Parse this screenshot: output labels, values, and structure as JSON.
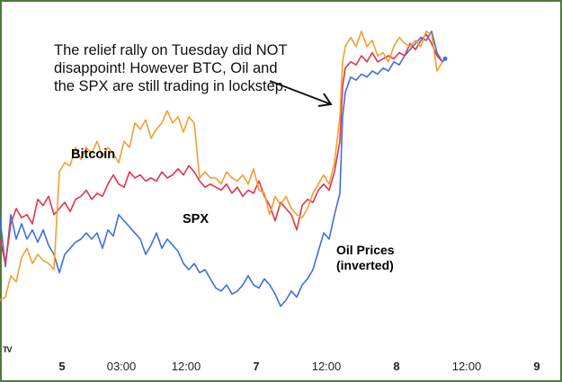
{
  "annotation": "The relief rally on Tuesday did NOT disappoint! However BTC, Oil and the SPX are still trading in lockstep.",
  "logo_text": "TV",
  "colors": {
    "bitcoin": "#f0a030",
    "spx": "#e0344c",
    "oil": "#3f6fdd",
    "frame": "#4e7a3a"
  },
  "chart_data": {
    "type": "line",
    "title": "",
    "xlabel": "",
    "ylabel": "",
    "x_ticks": [
      {
        "label": "5",
        "x": 0.1,
        "bold": true
      },
      {
        "label": "03:00",
        "x": 0.21,
        "bold": false
      },
      {
        "label": "12:00",
        "x": 0.33,
        "bold": false
      },
      {
        "label": "7",
        "x": 0.46,
        "bold": true
      },
      {
        "label": "12:00",
        "x": 0.59,
        "bold": false
      },
      {
        "label": "8",
        "x": 0.72,
        "bold": true
      },
      {
        "label": "12:00",
        "x": 0.85,
        "bold": false
      },
      {
        "label": "9",
        "x": 0.98,
        "bold": true
      }
    ],
    "x_range": [
      0,
      1
    ],
    "y_range": [
      0,
      1
    ],
    "series": [
      {
        "name": "Bitcoin",
        "label_lines": [
          "Bitcoin"
        ],
        "color": "#f0a030",
        "points": [
          [
            0,
            0.1
          ],
          [
            0.01,
            0.11
          ],
          [
            0.02,
            0.18
          ],
          [
            0.03,
            0.16
          ],
          [
            0.04,
            0.24
          ],
          [
            0.05,
            0.27
          ],
          [
            0.06,
            0.22
          ],
          [
            0.07,
            0.25
          ],
          [
            0.08,
            0.23
          ],
          [
            0.09,
            0.22
          ],
          [
            0.1,
            0.2
          ],
          [
            0.11,
            0.52
          ],
          [
            0.12,
            0.55
          ],
          [
            0.13,
            0.54
          ],
          [
            0.14,
            0.6
          ],
          [
            0.15,
            0.56
          ],
          [
            0.16,
            0.6
          ],
          [
            0.17,
            0.58
          ],
          [
            0.18,
            0.62
          ],
          [
            0.19,
            0.57
          ],
          [
            0.2,
            0.6
          ],
          [
            0.21,
            0.58
          ],
          [
            0.22,
            0.55
          ],
          [
            0.23,
            0.62
          ],
          [
            0.24,
            0.6
          ],
          [
            0.25,
            0.68
          ],
          [
            0.26,
            0.66
          ],
          [
            0.27,
            0.69
          ],
          [
            0.28,
            0.63
          ],
          [
            0.29,
            0.66
          ],
          [
            0.3,
            0.68
          ],
          [
            0.31,
            0.72
          ],
          [
            0.32,
            0.68
          ],
          [
            0.33,
            0.7
          ],
          [
            0.34,
            0.65
          ],
          [
            0.35,
            0.7
          ],
          [
            0.36,
            0.68
          ],
          [
            0.37,
            0.5
          ],
          [
            0.38,
            0.52
          ],
          [
            0.39,
            0.5
          ],
          [
            0.4,
            0.5
          ],
          [
            0.41,
            0.48
          ],
          [
            0.42,
            0.52
          ],
          [
            0.43,
            0.5
          ],
          [
            0.44,
            0.49
          ],
          [
            0.45,
            0.51
          ],
          [
            0.46,
            0.48
          ],
          [
            0.47,
            0.53
          ],
          [
            0.48,
            0.46
          ],
          [
            0.49,
            0.45
          ],
          [
            0.5,
            0.38
          ],
          [
            0.51,
            0.44
          ],
          [
            0.52,
            0.41
          ],
          [
            0.53,
            0.44
          ],
          [
            0.54,
            0.4
          ],
          [
            0.55,
            0.38
          ],
          [
            0.56,
            0.37
          ],
          [
            0.57,
            0.4
          ],
          [
            0.58,
            0.45
          ],
          [
            0.59,
            0.48
          ],
          [
            0.6,
            0.51
          ],
          [
            0.61,
            0.48
          ],
          [
            0.62,
            0.55
          ],
          [
            0.63,
            0.7
          ],
          [
            0.635,
            0.88
          ],
          [
            0.64,
            0.93
          ],
          [
            0.65,
            0.96
          ],
          [
            0.66,
            0.93
          ],
          [
            0.67,
            0.98
          ],
          [
            0.68,
            0.93
          ],
          [
            0.69,
            0.95
          ],
          [
            0.7,
            0.9
          ],
          [
            0.71,
            0.91
          ],
          [
            0.72,
            0.88
          ],
          [
            0.73,
            0.93
          ],
          [
            0.74,
            0.96
          ],
          [
            0.75,
            0.94
          ],
          [
            0.76,
            0.93
          ],
          [
            0.77,
            0.95
          ],
          [
            0.78,
            0.93
          ],
          [
            0.79,
            0.98
          ],
          [
            0.8,
            0.97
          ],
          [
            0.81,
            0.85
          ],
          [
            0.82,
            0.88
          ]
        ]
      },
      {
        "name": "SPX",
        "label_lines": [
          "SPX"
        ],
        "color": "#e0344c",
        "points": [
          [
            0,
            0.3
          ],
          [
            0.01,
            0.22
          ],
          [
            0.02,
            0.35
          ],
          [
            0.03,
            0.4
          ],
          [
            0.04,
            0.37
          ],
          [
            0.05,
            0.38
          ],
          [
            0.06,
            0.35
          ],
          [
            0.07,
            0.43
          ],
          [
            0.08,
            0.41
          ],
          [
            0.09,
            0.44
          ],
          [
            0.1,
            0.38
          ],
          [
            0.11,
            0.4
          ],
          [
            0.12,
            0.42
          ],
          [
            0.13,
            0.39
          ],
          [
            0.14,
            0.43
          ],
          [
            0.15,
            0.44
          ],
          [
            0.16,
            0.46
          ],
          [
            0.17,
            0.43
          ],
          [
            0.18,
            0.45
          ],
          [
            0.19,
            0.44
          ],
          [
            0.2,
            0.48
          ],
          [
            0.21,
            0.51
          ],
          [
            0.22,
            0.48
          ],
          [
            0.23,
            0.47
          ],
          [
            0.24,
            0.52
          ],
          [
            0.25,
            0.5
          ],
          [
            0.26,
            0.51
          ],
          [
            0.27,
            0.49
          ],
          [
            0.28,
            0.5
          ],
          [
            0.29,
            0.49
          ],
          [
            0.3,
            0.52
          ],
          [
            0.31,
            0.5
          ],
          [
            0.32,
            0.51
          ],
          [
            0.33,
            0.53
          ],
          [
            0.34,
            0.51
          ],
          [
            0.35,
            0.54
          ],
          [
            0.36,
            0.52
          ],
          [
            0.37,
            0.49
          ],
          [
            0.38,
            0.47
          ],
          [
            0.39,
            0.48
          ],
          [
            0.4,
            0.47
          ],
          [
            0.41,
            0.46
          ],
          [
            0.42,
            0.48
          ],
          [
            0.43,
            0.45
          ],
          [
            0.44,
            0.47
          ],
          [
            0.45,
            0.44
          ],
          [
            0.46,
            0.46
          ],
          [
            0.47,
            0.45
          ],
          [
            0.48,
            0.49
          ],
          [
            0.49,
            0.44
          ],
          [
            0.5,
            0.41
          ],
          [
            0.51,
            0.36
          ],
          [
            0.52,
            0.42
          ],
          [
            0.53,
            0.4
          ],
          [
            0.54,
            0.38
          ],
          [
            0.55,
            0.33
          ],
          [
            0.56,
            0.41
          ],
          [
            0.57,
            0.43
          ],
          [
            0.58,
            0.42
          ],
          [
            0.59,
            0.46
          ],
          [
            0.6,
            0.48
          ],
          [
            0.61,
            0.46
          ],
          [
            0.62,
            0.52
          ],
          [
            0.63,
            0.62
          ],
          [
            0.635,
            0.8
          ],
          [
            0.64,
            0.86
          ],
          [
            0.65,
            0.88
          ],
          [
            0.66,
            0.87
          ],
          [
            0.67,
            0.9
          ],
          [
            0.68,
            0.88
          ],
          [
            0.69,
            0.91
          ],
          [
            0.7,
            0.88
          ],
          [
            0.71,
            0.89
          ],
          [
            0.72,
            0.9
          ],
          [
            0.73,
            0.89
          ],
          [
            0.74,
            0.91
          ],
          [
            0.75,
            0.9
          ],
          [
            0.76,
            0.94
          ],
          [
            0.77,
            0.92
          ],
          [
            0.78,
            0.95
          ],
          [
            0.79,
            0.97
          ],
          [
            0.8,
            0.94
          ],
          [
            0.81,
            0.9
          ],
          [
            0.82,
            0.88
          ]
        ]
      },
      {
        "name": "Oil Prices (inverted)",
        "label_lines": [
          "Oil Prices",
          "(inverted)"
        ],
        "color": "#3f6fdd",
        "points": [
          [
            0,
            0.37
          ],
          [
            0.01,
            0.21
          ],
          [
            0.02,
            0.38
          ],
          [
            0.03,
            0.3
          ],
          [
            0.04,
            0.35
          ],
          [
            0.05,
            0.3
          ],
          [
            0.06,
            0.33
          ],
          [
            0.07,
            0.29
          ],
          [
            0.08,
            0.33
          ],
          [
            0.09,
            0.28
          ],
          [
            0.1,
            0.25
          ],
          [
            0.11,
            0.19
          ],
          [
            0.12,
            0.25
          ],
          [
            0.13,
            0.27
          ],
          [
            0.14,
            0.29
          ],
          [
            0.15,
            0.3
          ],
          [
            0.16,
            0.32
          ],
          [
            0.17,
            0.3
          ],
          [
            0.18,
            0.32
          ],
          [
            0.19,
            0.27
          ],
          [
            0.2,
            0.33
          ],
          [
            0.21,
            0.31
          ],
          [
            0.22,
            0.38
          ],
          [
            0.23,
            0.36
          ],
          [
            0.24,
            0.34
          ],
          [
            0.25,
            0.32
          ],
          [
            0.26,
            0.3
          ],
          [
            0.27,
            0.25
          ],
          [
            0.28,
            0.28
          ],
          [
            0.29,
            0.32
          ],
          [
            0.3,
            0.27
          ],
          [
            0.31,
            0.3
          ],
          [
            0.32,
            0.28
          ],
          [
            0.33,
            0.26
          ],
          [
            0.34,
            0.22
          ],
          [
            0.35,
            0.2
          ],
          [
            0.36,
            0.22
          ],
          [
            0.37,
            0.19
          ],
          [
            0.38,
            0.2
          ],
          [
            0.39,
            0.17
          ],
          [
            0.4,
            0.14
          ],
          [
            0.41,
            0.13
          ],
          [
            0.42,
            0.15
          ],
          [
            0.43,
            0.12
          ],
          [
            0.44,
            0.13
          ],
          [
            0.45,
            0.15
          ],
          [
            0.46,
            0.18
          ],
          [
            0.47,
            0.15
          ],
          [
            0.48,
            0.14
          ],
          [
            0.49,
            0.17
          ],
          [
            0.5,
            0.15
          ],
          [
            0.51,
            0.12
          ],
          [
            0.52,
            0.08
          ],
          [
            0.53,
            0.1
          ],
          [
            0.54,
            0.13
          ],
          [
            0.55,
            0.11
          ],
          [
            0.56,
            0.15
          ],
          [
            0.57,
            0.17
          ],
          [
            0.58,
            0.2
          ],
          [
            0.59,
            0.26
          ],
          [
            0.6,
            0.32
          ],
          [
            0.61,
            0.3
          ],
          [
            0.62,
            0.38
          ],
          [
            0.63,
            0.45
          ],
          [
            0.635,
            0.7
          ],
          [
            0.64,
            0.78
          ],
          [
            0.65,
            0.83
          ],
          [
            0.66,
            0.82
          ],
          [
            0.67,
            0.84
          ],
          [
            0.68,
            0.83
          ],
          [
            0.69,
            0.85
          ],
          [
            0.7,
            0.84
          ],
          [
            0.71,
            0.86
          ],
          [
            0.72,
            0.85
          ],
          [
            0.73,
            0.88
          ],
          [
            0.74,
            0.87
          ],
          [
            0.75,
            0.9
          ],
          [
            0.76,
            0.92
          ],
          [
            0.77,
            0.94
          ],
          [
            0.78,
            0.96
          ],
          [
            0.79,
            0.95
          ],
          [
            0.8,
            0.98
          ],
          [
            0.81,
            0.91
          ],
          [
            0.82,
            0.88
          ],
          [
            0.825,
            0.89
          ]
        ]
      }
    ]
  }
}
